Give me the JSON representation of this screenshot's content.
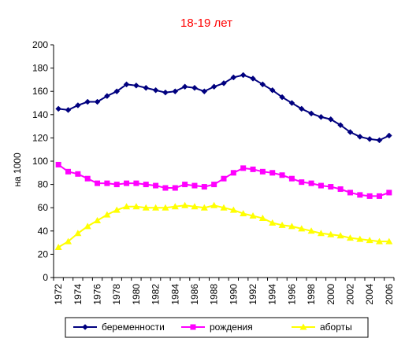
{
  "chart_data": {
    "type": "line",
    "title": "18-19 лет",
    "xlabel": "",
    "ylabel": "на 1000",
    "ylim": [
      0,
      200
    ],
    "yticks": [
      0,
      20,
      40,
      60,
      80,
      100,
      120,
      140,
      160,
      180,
      200
    ],
    "x": [
      1972,
      1973,
      1974,
      1975,
      1976,
      1977,
      1978,
      1979,
      1980,
      1981,
      1982,
      1983,
      1984,
      1985,
      1986,
      1987,
      1988,
      1989,
      1990,
      1991,
      1992,
      1993,
      1994,
      1995,
      1996,
      1997,
      1998,
      1999,
      2000,
      2001,
      2002,
      2003,
      2004,
      2005,
      2006
    ],
    "xticks": [
      "1972",
      "1974",
      "1976",
      "1978",
      "1980",
      "1982",
      "1984",
      "1986",
      "1988",
      "1990",
      "1992",
      "1994",
      "1996",
      "1998",
      "2000",
      "2002",
      "2004",
      "2006"
    ],
    "grid": false,
    "legend_position": "bottom",
    "series": [
      {
        "name": "беременности",
        "color": "#00007f",
        "marker": "diamond",
        "values": [
          145,
          144,
          148,
          151,
          151,
          156,
          160,
          166,
          165,
          163,
          161,
          159,
          160,
          164,
          163,
          160,
          164,
          167,
          172,
          174,
          171,
          166,
          161,
          155,
          150,
          145,
          141,
          138,
          136,
          131,
          125,
          121,
          119,
          118,
          122
        ]
      },
      {
        "name": "рождения",
        "color": "#ff00ff",
        "marker": "square",
        "values": [
          97,
          91,
          89,
          85,
          81,
          81,
          80,
          81,
          81,
          80,
          79,
          77,
          77,
          80,
          79,
          78,
          80,
          85,
          90,
          94,
          93,
          91,
          90,
          88,
          85,
          82,
          81,
          79,
          78,
          76,
          73,
          71,
          70,
          70,
          73
        ]
      },
      {
        "name": "аборты",
        "color": "#ffff00",
        "marker": "triangle",
        "values": [
          26,
          31,
          38,
          44,
          49,
          54,
          58,
          61,
          61,
          60,
          60,
          60,
          61,
          62,
          61,
          60,
          62,
          60,
          58,
          55,
          53,
          51,
          47,
          45,
          44,
          42,
          40,
          38,
          37,
          36,
          34,
          33,
          32,
          31,
          31
        ]
      }
    ]
  }
}
